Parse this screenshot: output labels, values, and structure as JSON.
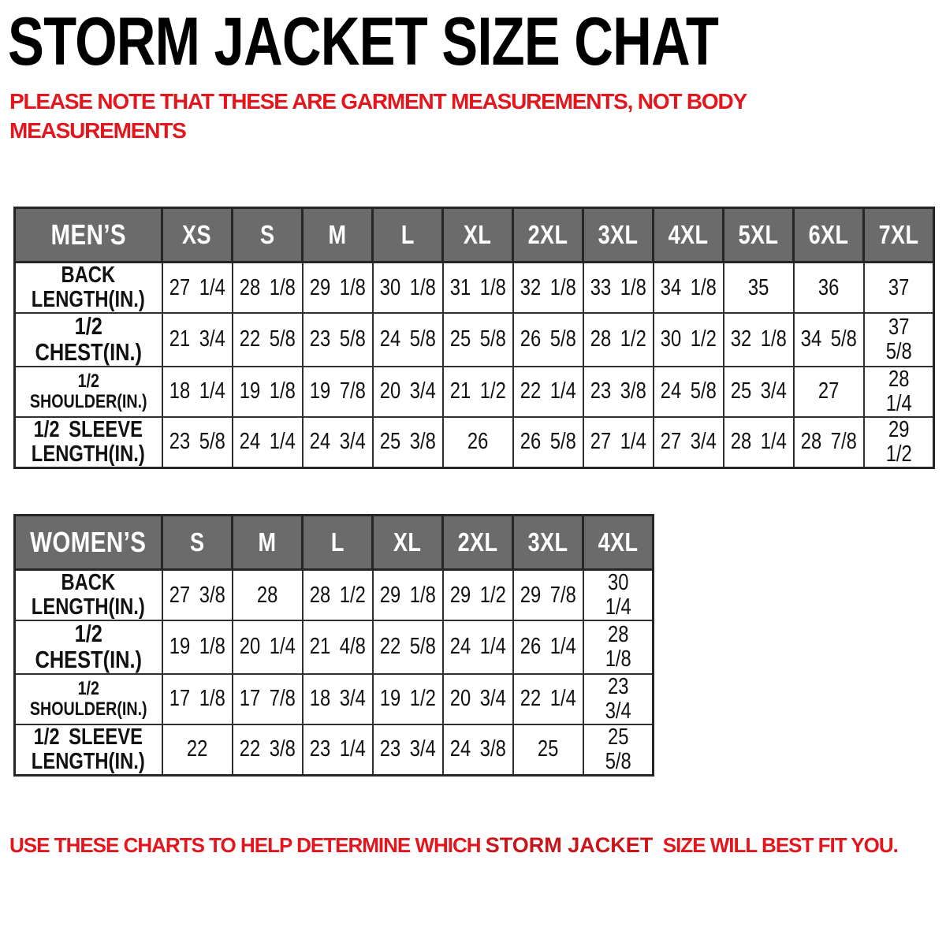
{
  "title": "STORM JACKET SIZE CHAT",
  "note": "PLEASE NOTE THAT THESE ARE GARMENT MEASUREMENTS, NOT BODY\nMEASUREMENTS",
  "footer": {
    "prefix": "USE THESE CHARTS TO HELP DETERMINE WHICH ",
    "product": "STORM JACKET",
    "suffix": "  SIZE WILL BEST FIT YOU."
  },
  "colors": {
    "accent_red": "#e4151c",
    "product_red": "#c9151a",
    "header_gray": "#6b6b6b",
    "border_dark": "#2b2b2b",
    "text_black": "#111111"
  },
  "tables": [
    {
      "name": "MEN’S",
      "sizes": [
        "XS",
        "S",
        "M",
        "L",
        "XL",
        "2XL",
        "3XL",
        "4XL",
        "5XL",
        "6XL",
        "7XL"
      ],
      "rows": [
        {
          "label": "BACK\nLENGTH(IN.)",
          "values": [
            "27 1/4",
            "28 1/8",
            "29 1/8",
            "30 1/8",
            "31 1/8",
            "32 1/8",
            "33 1/8",
            "34 1/8",
            "35",
            "36",
            "37"
          ]
        },
        {
          "label": "1/2 CHEST(IN.)",
          "values": [
            "21 3/4",
            "22 5/8",
            "23 5/8",
            "24 5/8",
            "25 5/8",
            "26 5/8",
            "28 1/2",
            "30 1/2",
            "32 1/8",
            "34 5/8",
            "37 5/8"
          ]
        },
        {
          "label": "1/2 SHOULDER(IN.)",
          "values": [
            "18 1/4",
            "19 1/8",
            "19 7/8",
            "20 3/4",
            "21 1/2",
            "22 1/4",
            "23 3/8",
            "24 5/8",
            "25 3/4",
            "27",
            "28 1/4"
          ]
        },
        {
          "label": "1/2 SLEEVE\nLENGTH(IN.)",
          "values": [
            "23 5/8",
            "24 1/4",
            "24 3/4",
            "25 3/8",
            "26",
            "26 5/8",
            "27 1/4",
            "27 3/4",
            "28 1/4",
            "28 7/8",
            "29 1/2"
          ]
        }
      ]
    },
    {
      "name": "WOMEN’S",
      "sizes": [
        "S",
        "M",
        "L",
        "XL",
        "2XL",
        "3XL",
        "4XL"
      ],
      "rows": [
        {
          "label": "BACK\nLENGTH(IN.)",
          "values": [
            "27 3/8",
            "28",
            "28 1/2",
            "29 1/8",
            "29 1/2",
            "29 7/8",
            "30 1/4"
          ]
        },
        {
          "label": "1/2 CHEST(IN.)",
          "values": [
            "19 1/8",
            "20 1/4",
            "21 4/8",
            "22 5/8",
            "24 1/4",
            "26 1/4",
            "28 1/8"
          ]
        },
        {
          "label": "1/2 SHOULDER(IN.)",
          "values": [
            "17 1/8",
            "17 7/8",
            "18 3/4",
            "19 1/2",
            "20 3/4",
            "22 1/4",
            "23 3/4"
          ]
        },
        {
          "label": "1/2 SLEEVE\nLENGTH(IN.)",
          "values": [
            "22",
            "22 3/8",
            "23 1/4",
            "23 3/4",
            "24 3/8",
            "25",
            "25 5/8"
          ]
        }
      ]
    }
  ]
}
